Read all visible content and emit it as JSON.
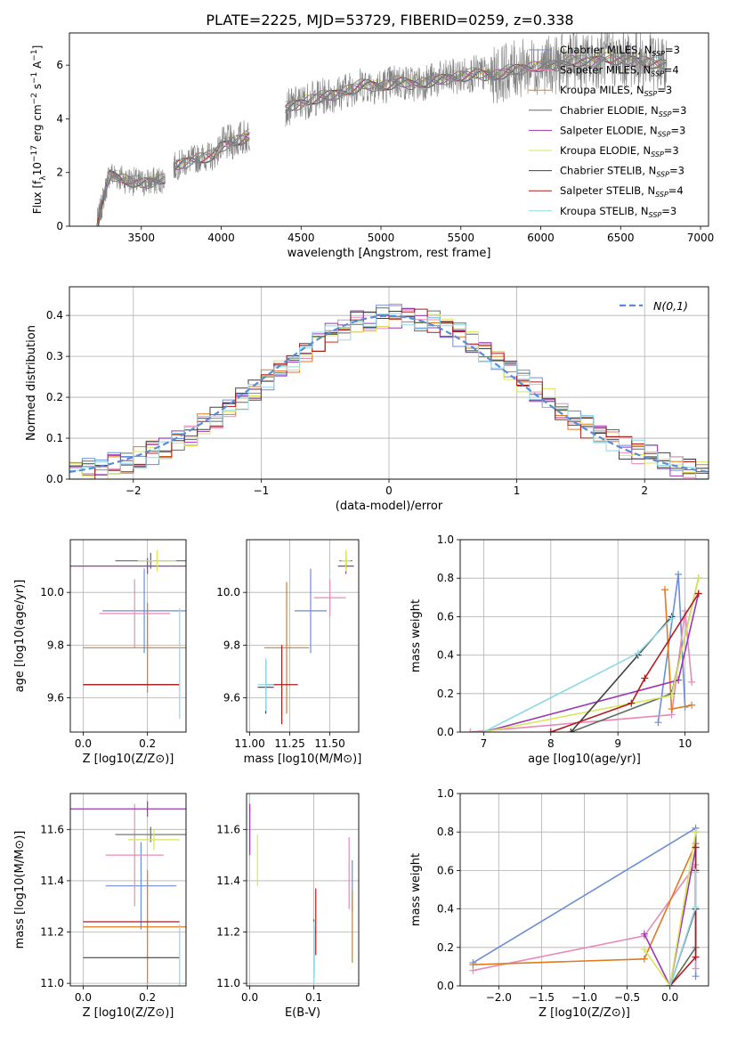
{
  "figure_title": "PLATE=2225, MJD=53729, FIBERID=0259, z=0.338",
  "colors": {
    "Chabrier MILES": "#6c8ed6",
    "Salpeter MILES": "#e88ab8",
    "Kroupa MILES": "#e07a1f",
    "Chabrier ELODIE": "#5f6f5f",
    "Salpeter ELODIE": "#9b37b5",
    "Kroupa ELODIE": "#d9e65a",
    "Chabrier STELIB": "#404040",
    "Salpeter STELIB": "#b01a1a",
    "Kroupa STELIB": "#8ed8e8",
    "gaussian": "#5b8bd6",
    "spectrum_gray": "#808080"
  },
  "chart_data": [
    {
      "id": "spectrum",
      "type": "line",
      "title": "PLATE=2225, MJD=53729, FIBERID=0259, z=0.338",
      "xlabel": "wavelength [Angstrom, rest frame]",
      "ylabel_parts": [
        "Flux [f",
        "λ",
        "10",
        "−17",
        " erg cm",
        "−2",
        " s",
        "−1",
        " A",
        "−1",
        "]"
      ],
      "xlim": [
        3050,
        7050
      ],
      "ylim": [
        0,
        7.2
      ],
      "xticks": [
        3500,
        4000,
        4500,
        5000,
        5500,
        6000,
        6500,
        7000
      ],
      "yticks": [
        0,
        2,
        4,
        6
      ],
      "legend_position": "upper right",
      "x_range_data": [
        3220,
        6790
      ],
      "gaps": [
        [
          3650,
          3700
        ],
        [
          4180,
          4400
        ]
      ],
      "anchors_x": [
        3220,
        3300,
        3400,
        3500,
        3600,
        3650,
        3700,
        3800,
        3900,
        3950,
        4000,
        4100,
        4180,
        4400,
        4500,
        4600,
        4700,
        4800,
        4900,
        5000,
        5100,
        5200,
        5300,
        5400,
        5500,
        5600,
        5700,
        5800,
        5900,
        6000,
        6100,
        6200,
        6300,
        6400,
        6500,
        6600,
        6700,
        6790
      ],
      "anchors_y": [
        0,
        1.95,
        1.75,
        1.6,
        1.7,
        1.8,
        2.2,
        2.45,
        2.6,
        2.6,
        3.0,
        3.2,
        3.4,
        4.4,
        4.6,
        4.8,
        4.9,
        5.1,
        5.3,
        5.2,
        5.4,
        5.3,
        5.4,
        5.5,
        5.6,
        5.7,
        5.6,
        5.8,
        5.9,
        6.0,
        6.0,
        6.2,
        6.1,
        6.3,
        6.2,
        6.2,
        6.1,
        6.0
      ],
      "legend": [
        {
          "label": "Chabrier MILES, N",
          "sub": "SSP",
          "eq": "=3"
        },
        {
          "label": "Salpeter MILES, N",
          "sub": "SSP",
          "eq": "=4"
        },
        {
          "label": "Kroupa MILES, N",
          "sub": "SSP",
          "eq": "=3"
        },
        {
          "label": "Chabrier ELODIE, N",
          "sub": "SSP",
          "eq": "=3"
        },
        {
          "label": "Salpeter ELODIE, N",
          "sub": "SSP",
          "eq": "=3"
        },
        {
          "label": "Kroupa ELODIE, N",
          "sub": "SSP",
          "eq": "=3"
        },
        {
          "label": "Chabrier STELIB, N",
          "sub": "SSP",
          "eq": "=3"
        },
        {
          "label": "Salpeter STELIB, N",
          "sub": "SSP",
          "eq": "=4"
        },
        {
          "label": "Kroupa STELIB, N",
          "sub": "SSP",
          "eq": "=3"
        }
      ]
    },
    {
      "id": "residuals",
      "type": "line",
      "xlabel": "(data-model)/error",
      "ylabel": "Normed distribution",
      "xlim": [
        -2.5,
        2.5
      ],
      "ylim": [
        0,
        0.47
      ],
      "xticks": [
        -2,
        -1,
        0,
        1,
        2
      ],
      "yticks": [
        0.0,
        0.1,
        0.2,
        0.3,
        0.4
      ],
      "grid": true,
      "legend": "N(0,1)",
      "legend_position": "upper right",
      "bin_start": -2.5,
      "bin_width": 0.1,
      "n_bins": 50
    },
    {
      "id": "age_vs_Z",
      "type": "scatter",
      "xlabel": "Z [log10(Z/Z⊙)]",
      "ylabel": "age [log10(age/yr)]",
      "xlim": [
        -0.04,
        0.32
      ],
      "ylim": [
        9.47,
        10.2
      ],
      "xticks": [
        0.0,
        0.2
      ],
      "yticks": [
        9.6,
        9.8,
        10.0
      ],
      "grid": true,
      "points": [
        {
          "model": "Chabrier MILES",
          "x": 0.19,
          "xerr": 0.13,
          "y": 9.93,
          "yerr": 0.16
        },
        {
          "model": "Salpeter MILES",
          "x": 0.16,
          "xerr": 0.11,
          "y": 9.92,
          "yerr": 0.13
        },
        {
          "model": "Kroupa MILES",
          "x": 0.2,
          "xerr": 0.2,
          "y": 9.79,
          "yerr": 0.17
        },
        {
          "model": "Chabrier ELODIE",
          "x": 0.21,
          "xerr": 0.11,
          "y": 10.12,
          "yerr": 0.03
        },
        {
          "model": "Salpeter ELODIE",
          "x": 0.2,
          "xerr": 0.25,
          "y": 10.1,
          "yerr": 0.03
        },
        {
          "model": "Kroupa ELODIE",
          "x": 0.23,
          "xerr": 0.06,
          "y": 10.12,
          "yerr": 0.04
        },
        {
          "model": "Chabrier STELIB",
          "x": 0.15,
          "xerr": 0.15,
          "y": 9.65,
          "yerr": 0.0
        },
        {
          "model": "Salpeter STELIB",
          "x": 0.15,
          "xerr": 0.15,
          "y": 9.65,
          "yerr": 0.0
        },
        {
          "model": "Kroupa STELIB",
          "x": 0.3,
          "xerr": 0.0,
          "y": 9.73,
          "yerr": 0.21
        }
      ]
    },
    {
      "id": "age_vs_mass",
      "type": "scatter",
      "xlabel": "mass [log10(M/M⊙)]",
      "ylabel": "",
      "xlim": [
        10.98,
        11.68
      ],
      "ylim": [
        9.47,
        10.2
      ],
      "xticks": [
        11.0,
        11.25,
        11.5
      ],
      "yticks": [
        9.6,
        9.8,
        10.0
      ],
      "grid": true,
      "points": [
        {
          "model": "Chabrier MILES",
          "x": 11.38,
          "xerr": 0.1,
          "y": 9.93,
          "yerr": 0.16
        },
        {
          "model": "Salpeter MILES",
          "x": 11.5,
          "xerr": 0.1,
          "y": 9.98,
          "yerr": 0.07
        },
        {
          "model": "Kroupa MILES",
          "x": 11.23,
          "xerr": 0.14,
          "y": 9.79,
          "yerr": 0.25
        },
        {
          "model": "Chabrier ELODIE",
          "x": 11.6,
          "xerr": 0.04,
          "y": 10.12,
          "yerr": 0.03
        },
        {
          "model": "Salpeter ELODIE",
          "x": 11.6,
          "xerr": 0.05,
          "y": 10.1,
          "yerr": 0.03
        },
        {
          "model": "Kroupa ELODIE",
          "x": 11.6,
          "xerr": 0.03,
          "y": 10.12,
          "yerr": 0.04
        },
        {
          "model": "Chabrier STELIB",
          "x": 11.1,
          "xerr": 0.05,
          "y": 9.64,
          "yerr": 0.1
        },
        {
          "model": "Salpeter STELIB",
          "x": 11.2,
          "xerr": 0.1,
          "y": 9.65,
          "yerr": 0.15
        },
        {
          "model": "Kroupa STELIB",
          "x": 11.1,
          "xerr": 0.05,
          "y": 9.65,
          "yerr": 0.1
        }
      ]
    },
    {
      "id": "massweight_vs_age",
      "type": "line",
      "xlabel": "age [log10(age/yr)]",
      "ylabel": "mass weight",
      "xlim": [
        6.65,
        10.35
      ],
      "ylim": [
        0,
        1.0
      ],
      "xticks": [
        7,
        8,
        9,
        10
      ],
      "yticks": [
        0.0,
        0.2,
        0.4,
        0.6,
        0.8,
        1.0
      ],
      "grid": true,
      "series": [
        {
          "model": "Chabrier MILES",
          "x": [
            9.6,
            9.9,
            10.0
          ],
          "y": [
            0.05,
            0.82,
            0.13
          ]
        },
        {
          "model": "Salpeter MILES",
          "x": [
            6.8,
            9.8,
            10.0,
            10.1
          ],
          "y": [
            0.0,
            0.09,
            0.63,
            0.26
          ]
        },
        {
          "model": "Kroupa MILES",
          "x": [
            9.7,
            9.8,
            10.1
          ],
          "y": [
            0.74,
            0.12,
            0.14
          ]
        },
        {
          "model": "Chabrier ELODIE",
          "x": [
            8.3,
            9.8,
            10.2
          ],
          "y": [
            0.0,
            0.2,
            0.8
          ]
        },
        {
          "model": "Salpeter ELODIE",
          "x": [
            7.0,
            9.9,
            10.2
          ],
          "y": [
            0.0,
            0.27,
            0.72
          ]
        },
        {
          "model": "Kroupa ELODIE",
          "x": [
            7.0,
            9.8,
            10.2
          ],
          "y": [
            0.0,
            0.19,
            0.8
          ]
        },
        {
          "model": "Chabrier STELIB",
          "x": [
            8.3,
            9.3,
            9.8
          ],
          "y": [
            0.0,
            0.4,
            0.6
          ]
        },
        {
          "model": "Salpeter STELIB",
          "x": [
            8.0,
            9.2,
            9.4,
            10.2
          ],
          "y": [
            0.0,
            0.15,
            0.28,
            0.72
          ]
        },
        {
          "model": "Kroupa STELIB",
          "x": [
            7.0,
            9.3,
            9.8
          ],
          "y": [
            0.0,
            0.41,
            0.59
          ]
        }
      ]
    },
    {
      "id": "mass_vs_Z",
      "type": "scatter",
      "xlabel": "Z [log10(Z/Z⊙)]",
      "ylabel": "mass [log10(M/M⊙)]",
      "xlim": [
        -0.04,
        0.32
      ],
      "ylim": [
        10.99,
        11.74
      ],
      "xticks": [
        0.0,
        0.2
      ],
      "yticks": [
        11.0,
        11.2,
        11.4,
        11.6
      ],
      "grid": true,
      "points": [
        {
          "model": "Chabrier MILES",
          "x": 0.18,
          "xerr": 0.11,
          "y": 11.38,
          "yerr": 0.17
        },
        {
          "model": "Salpeter MILES",
          "x": 0.16,
          "xerr": 0.09,
          "y": 11.5,
          "yerr": 0.2
        },
        {
          "model": "Kroupa MILES",
          "x": 0.2,
          "xerr": 0.2,
          "y": 11.22,
          "yerr": 0.22
        },
        {
          "model": "Chabrier ELODIE",
          "x": 0.21,
          "xerr": 0.11,
          "y": 11.58,
          "yerr": 0.03
        },
        {
          "model": "Salpeter ELODIE",
          "x": 0.2,
          "xerr": 0.25,
          "y": 11.68,
          "yerr": 0.03
        },
        {
          "model": "Kroupa ELODIE",
          "x": 0.22,
          "xerr": 0.08,
          "y": 11.56,
          "yerr": 0.04
        },
        {
          "model": "Chabrier STELIB",
          "x": 0.15,
          "xerr": 0.15,
          "y": 11.1,
          "yerr": 0.0
        },
        {
          "model": "Salpeter STELIB",
          "x": 0.15,
          "xerr": 0.15,
          "y": 11.24,
          "yerr": 0.0
        },
        {
          "model": "Kroupa STELIB",
          "x": 0.3,
          "xerr": 0.0,
          "y": 11.11,
          "yerr": 0.12
        }
      ]
    },
    {
      "id": "mass_vs_EBV",
      "type": "scatter",
      "xlabel": "E(B-V)",
      "ylabel": "",
      "xlim": [
        -0.005,
        0.17
      ],
      "ylim": [
        10.99,
        11.74
      ],
      "xticks": [
        0.0,
        0.1
      ],
      "yticks": [
        11.0,
        11.2,
        11.4,
        11.6
      ],
      "grid": true,
      "points": [
        {
          "model": "Chabrier MILES",
          "x": 0.16,
          "xerr": 0.0,
          "y": 11.38,
          "yerr": 0.1
        },
        {
          "model": "Salpeter MILES",
          "x": 0.155,
          "xerr": 0.0,
          "y": 11.43,
          "yerr": 0.14
        },
        {
          "model": "Kroupa MILES",
          "x": 0.16,
          "xerr": 0.0,
          "y": 11.22,
          "yerr": 0.14
        },
        {
          "model": "Chabrier ELODIE",
          "x": 0.1,
          "xerr": 0.0,
          "y": 11.15,
          "yerr": 0.1
        },
        {
          "model": "Salpeter ELODIE",
          "x": 0.0,
          "xerr": 0.0,
          "y": 11.6,
          "yerr": 0.1
        },
        {
          "model": "Kroupa ELODIE",
          "x": 0.012,
          "xerr": 0.0,
          "y": 11.48,
          "yerr": 0.1
        },
        {
          "model": "Chabrier STELIB",
          "x": 0.1,
          "xerr": 0.0,
          "y": 11.12,
          "yerr": 0.1
        },
        {
          "model": "Salpeter STELIB",
          "x": 0.103,
          "xerr": 0.0,
          "y": 11.24,
          "yerr": 0.13
        },
        {
          "model": "Kroupa STELIB",
          "x": 0.1,
          "xerr": 0.0,
          "y": 11.12,
          "yerr": 0.12
        }
      ]
    },
    {
      "id": "massweight_vs_Z",
      "type": "line",
      "xlabel": "Z [log10(Z/Z⊙)]",
      "ylabel": "mass weight",
      "xlim": [
        -2.45,
        0.45
      ],
      "ylim": [
        0,
        1.0
      ],
      "xticks": [
        -2.0,
        -1.5,
        -1.0,
        -0.5,
        0.0
      ],
      "xtick_labels": [
        "−2.0",
        "−1.5",
        "−1.0",
        "−0.5",
        "0.0"
      ],
      "yticks": [
        0.0,
        0.2,
        0.4,
        0.6,
        0.8,
        1.0
      ],
      "grid": true,
      "series": [
        {
          "model": "Chabrier MILES",
          "x": [
            -2.3,
            0.3,
            0.3
          ],
          "y": [
            0.12,
            0.82,
            0.05
          ]
        },
        {
          "model": "Salpeter MILES",
          "x": [
            -2.3,
            -0.3,
            0.3,
            0.3
          ],
          "y": [
            0.08,
            0.26,
            0.63,
            0.09
          ]
        },
        {
          "model": "Kroupa MILES",
          "x": [
            -2.3,
            -0.3,
            0.3
          ],
          "y": [
            0.11,
            0.14,
            0.74
          ]
        },
        {
          "model": "Chabrier ELODIE",
          "x": [
            0.0,
            0.3,
            0.3
          ],
          "y": [
            0.0,
            0.2,
            0.8
          ]
        },
        {
          "model": "Salpeter ELODIE",
          "x": [
            -0.3,
            0.0,
            0.3
          ],
          "y": [
            0.27,
            0.0,
            0.72
          ]
        },
        {
          "model": "Kroupa ELODIE",
          "x": [
            -0.3,
            0.0,
            0.3
          ],
          "y": [
            0.19,
            0.0,
            0.8
          ]
        },
        {
          "model": "Chabrier STELIB",
          "x": [
            0.0,
            0.3,
            0.3
          ],
          "y": [
            0.0,
            0.4,
            0.6
          ]
        },
        {
          "model": "Salpeter STELIB",
          "x": [
            0.0,
            0.3,
            0.3
          ],
          "y": [
            0.0,
            0.15,
            0.72
          ]
        },
        {
          "model": "Kroupa STELIB",
          "x": [
            0.0,
            0.3,
            0.3
          ],
          "y": [
            0.0,
            0.41,
            0.59
          ]
        }
      ]
    }
  ]
}
